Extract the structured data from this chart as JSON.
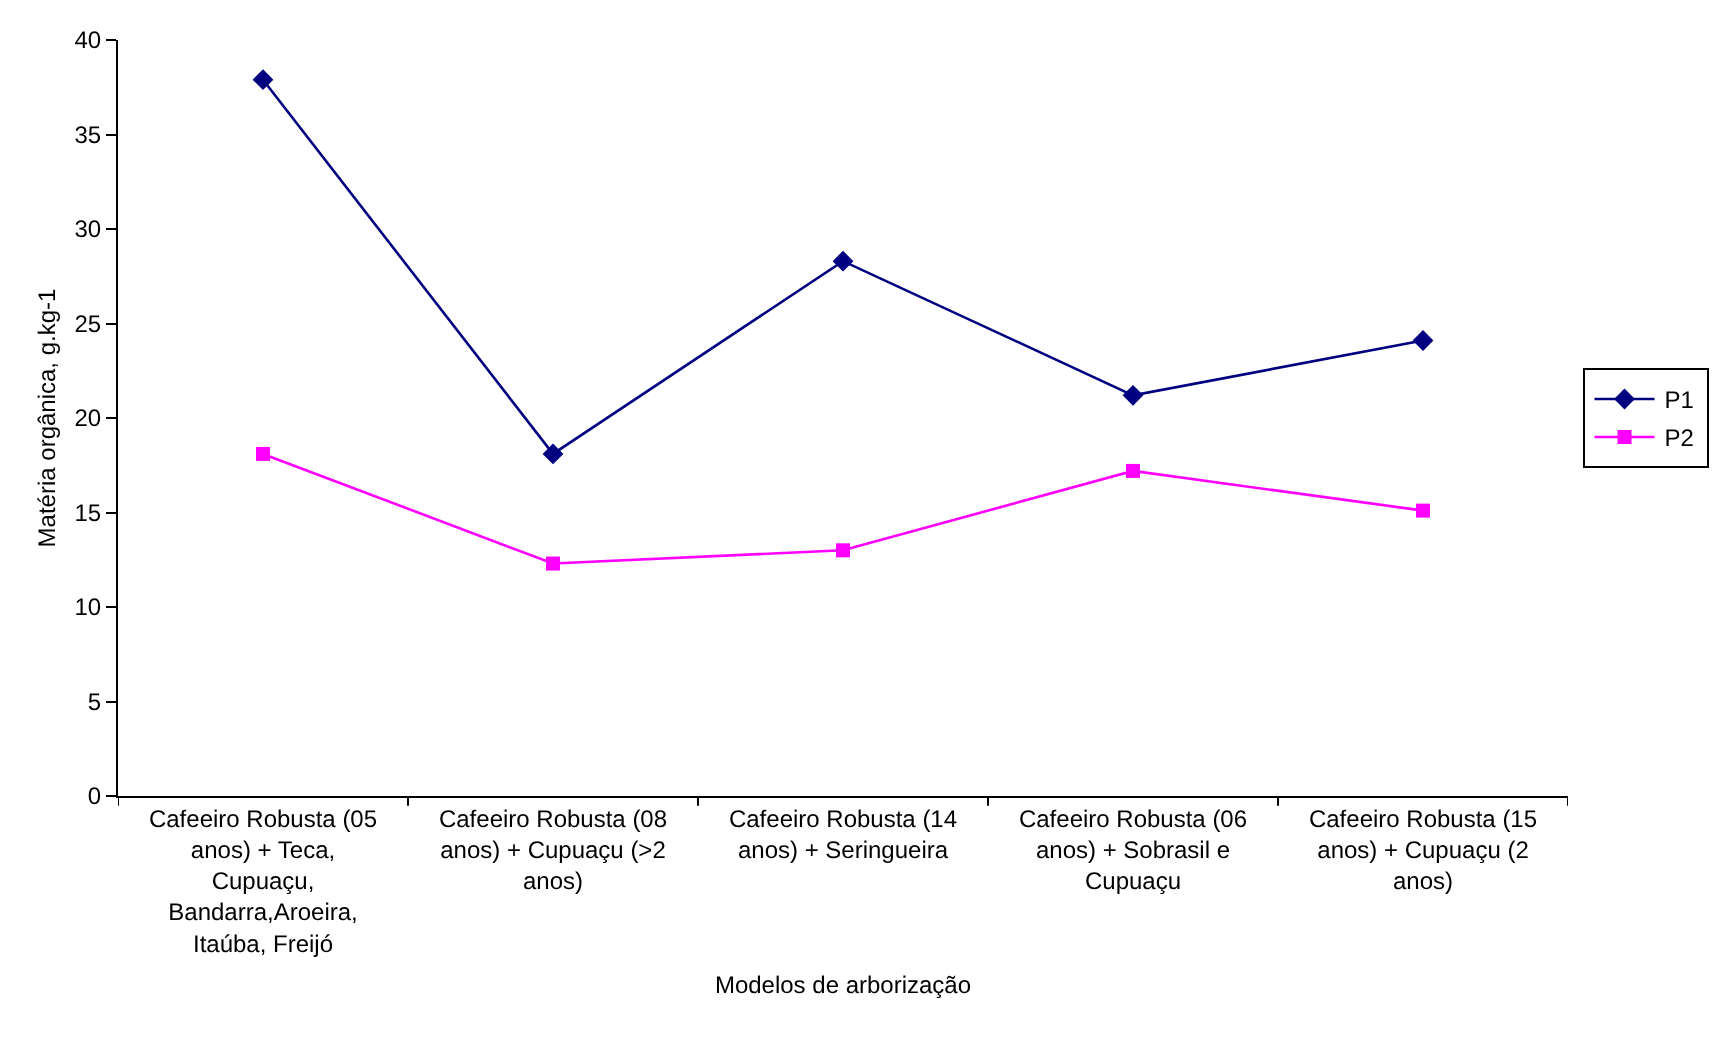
{
  "chart_data": {
    "type": "line",
    "xlabel": "Modelos de arborização",
    "ylabel": "Matéria orgânica, g.kg-1",
    "categories": [
      "Cafeeiro Robusta (05 anos) + Teca, Cupuaçu, Bandarra,Aroeira, Itaúba, Freijó",
      "Cafeeiro Robusta (08 anos) + Cupuaçu (>2 anos)",
      "Cafeeiro Robusta (14 anos) + Seringueira",
      "Cafeeiro Robusta (06 anos) + Sobrasil e Cupuaçu",
      "Cafeeiro Robusta (15 anos) + Cupuaçu (2 anos)"
    ],
    "series": [
      {
        "name": "P1",
        "color": "#000080",
        "marker": "diamond",
        "values": [
          37.9,
          18.1,
          28.3,
          21.2,
          24.1
        ]
      },
      {
        "name": "P2",
        "color": "#ff00ff",
        "marker": "square",
        "values": [
          18.1,
          12.3,
          13.0,
          17.2,
          15.1
        ]
      }
    ],
    "ylim": [
      0,
      40
    ],
    "yticks": [
      0,
      5,
      10,
      15,
      20,
      25,
      30,
      35,
      40
    ],
    "grid": false,
    "legend": "right"
  }
}
